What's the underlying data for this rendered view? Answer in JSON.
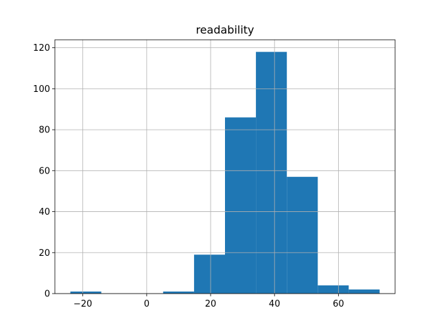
{
  "chart_data": {
    "type": "histogram",
    "title": "readability",
    "bins": [
      -23.9,
      -14.22,
      -4.54,
      5.14,
      14.82,
      24.5,
      34.18,
      43.86,
      53.54,
      63.22,
      72.9
    ],
    "values": [
      1,
      0,
      0,
      1,
      19,
      86,
      118,
      57,
      4,
      2
    ],
    "color": "#1f77b4",
    "xlim": [
      -28.74,
      77.74
    ],
    "xticks": [
      {
        "value": -20,
        "label": "−20"
      },
      0,
      20,
      40,
      60
    ],
    "ylim": [
      0,
      123.9
    ],
    "yticks": [
      0,
      20,
      40,
      60,
      80,
      100,
      120
    ],
    "grid": true
  }
}
